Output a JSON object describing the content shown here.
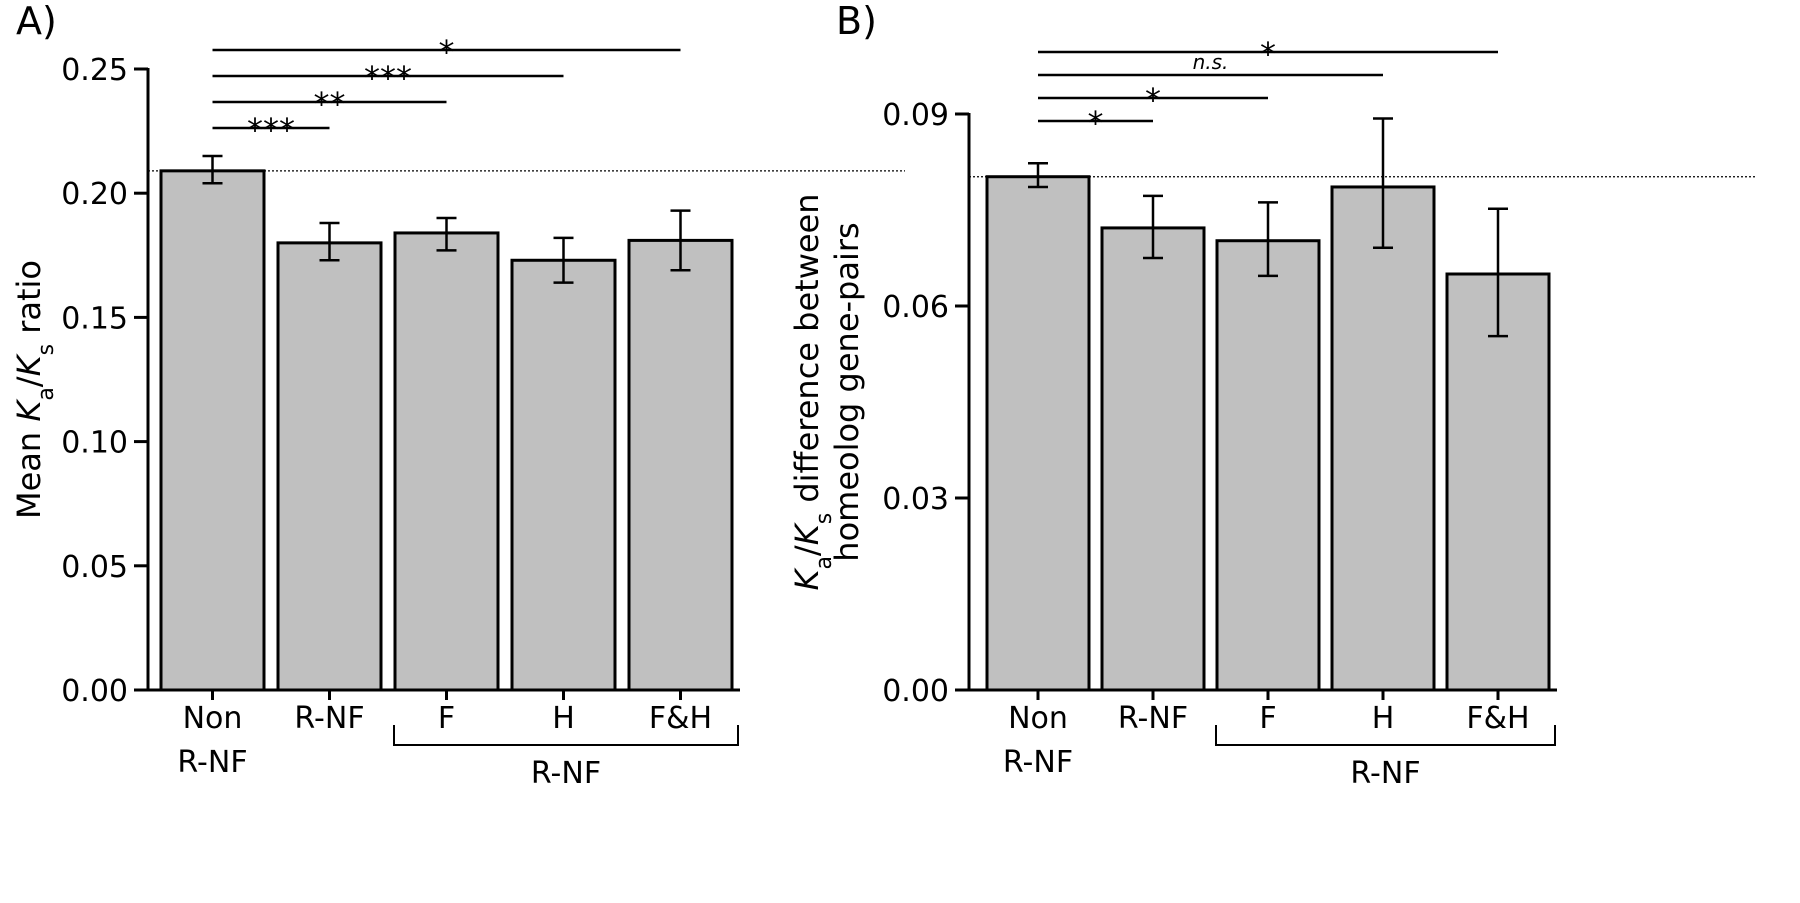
{
  "chart_data": [
    {
      "type": "bar",
      "panel_label": "A)",
      "ylabel_parts": [
        "Mean ",
        "K",
        "a",
        "/",
        "K",
        "s",
        " ratio"
      ],
      "ylim": [
        0,
        0.25
      ],
      "yticks": [
        "0.00",
        "0.05",
        "0.10",
        "0.15",
        "0.20",
        "0.25"
      ],
      "categories": [
        "Non R-NF",
        "R-NF",
        "F",
        "H",
        "F&H"
      ],
      "category_lines": [
        [
          "Non",
          "R-NF"
        ],
        [
          "R-NF"
        ],
        [
          "F"
        ],
        [
          "H"
        ],
        [
          "F&H"
        ]
      ],
      "values": [
        0.209,
        0.18,
        0.184,
        0.173,
        0.181
      ],
      "errors": [
        [
          0.204,
          0.215
        ],
        [
          0.173,
          0.188
        ],
        [
          0.177,
          0.19
        ],
        [
          0.164,
          0.182
        ],
        [
          0.169,
          0.193
        ]
      ],
      "reference_line": 0.209,
      "group_label": "R-NF",
      "group_categories": [
        2,
        4
      ],
      "significance": [
        {
          "from": 0,
          "to": 1,
          "label": "***"
        },
        {
          "from": 0,
          "to": 2,
          "label": "**"
        },
        {
          "from": 0,
          "to": 3,
          "label": "***"
        },
        {
          "from": 0,
          "to": 4,
          "label": "*"
        }
      ]
    },
    {
      "type": "bar",
      "panel_label": "B)",
      "ylabel_line1_parts": [
        "K",
        "a",
        "/",
        "K",
        "s",
        " difference between"
      ],
      "ylabel_line2": "homeolog gene-pairs",
      "ylim": [
        0,
        0.09
      ],
      "yticks": [
        "0.00",
        "0.03",
        "0.06",
        "0.09"
      ],
      "categories": [
        "Non R-NF",
        "R-NF",
        "F",
        "H",
        "F&H"
      ],
      "category_lines": [
        [
          "Non",
          "R-NF"
        ],
        [
          "R-NF"
        ],
        [
          "F"
        ],
        [
          "H"
        ],
        [
          "F&H"
        ]
      ],
      "values": [
        0.0802,
        0.0722,
        0.0702,
        0.0786,
        0.065
      ],
      "errors": [
        [
          0.0786,
          0.0823
        ],
        [
          0.0675,
          0.0772
        ],
        [
          0.0647,
          0.0762
        ],
        [
          0.0691,
          0.0893
        ],
        [
          0.0553,
          0.0752
        ]
      ],
      "reference_line": 0.0802,
      "group_label": "R-NF",
      "group_categories": [
        2,
        4
      ],
      "significance": [
        {
          "from": 0,
          "to": 1,
          "label": "*"
        },
        {
          "from": 0,
          "to": 2,
          "label": "*"
        },
        {
          "from": 0,
          "to": 3,
          "label": "n.s."
        },
        {
          "from": 0,
          "to": 4,
          "label": "*"
        }
      ]
    }
  ]
}
